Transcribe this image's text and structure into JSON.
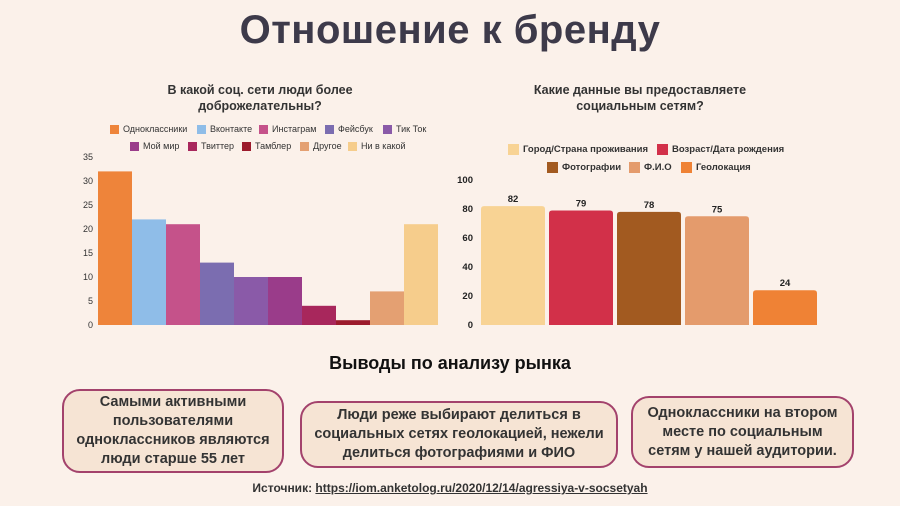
{
  "title": "Отношение к бренду",
  "subhead": "Выводы по анализу рынка",
  "cards": [
    "Самыми активными пользователями одноклассников являются люди старше 55 лет",
    "Люди реже выбирают делиться в социальных сетях геолокацией, нежели делиться фотографиями и ФИО",
    "Одноклассники на втором месте по социальным сетям у нашей аудитории."
  ],
  "source": {
    "label": "Источник:",
    "link": "https://iom.anketolog.ru/2020/12/14/agressiya-v-socsetyah"
  },
  "chart_data": [
    {
      "type": "bar",
      "title": "В какой соц. сети люди более доброжелательны?",
      "categories": [
        "Одноклассники",
        "Вконтакте",
        "Инстаграм",
        "Фейсбук",
        "Тик Ток",
        "Мой мир",
        "Твиттер",
        "Тамблер",
        "Другое",
        "Ни в какой"
      ],
      "values": [
        32,
        22,
        21,
        13,
        10,
        10,
        4,
        1,
        7,
        21
      ],
      "colors": [
        "#ee843a",
        "#8fbde8",
        "#c5528a",
        "#7b6db0",
        "#8a5aa8",
        "#9a3c8a",
        "#a8275c",
        "#9c1b2c",
        "#e4a072",
        "#f6cd8c"
      ],
      "yticks": [
        0,
        5,
        10,
        15,
        20,
        25,
        30,
        35
      ],
      "ylim": [
        0,
        35
      ],
      "grid": false,
      "legend": "top"
    },
    {
      "type": "bar",
      "title": "Какие данные вы предоставляете социальным сетям?",
      "categories": [
        "Город/Страна проживания",
        "Возраст/Дата рождения",
        "Фотографии",
        "Ф.И.О",
        "Геолокация"
      ],
      "values": [
        82,
        79,
        78,
        75,
        24
      ],
      "colors": [
        "#f8d394",
        "#d23049",
        "#a25a20",
        "#e49b6c",
        "#ef8235"
      ],
      "yticks": [
        0,
        20,
        40,
        60,
        80,
        100
      ],
      "ylim": [
        0,
        100
      ],
      "grid": false,
      "legend": "top"
    }
  ]
}
